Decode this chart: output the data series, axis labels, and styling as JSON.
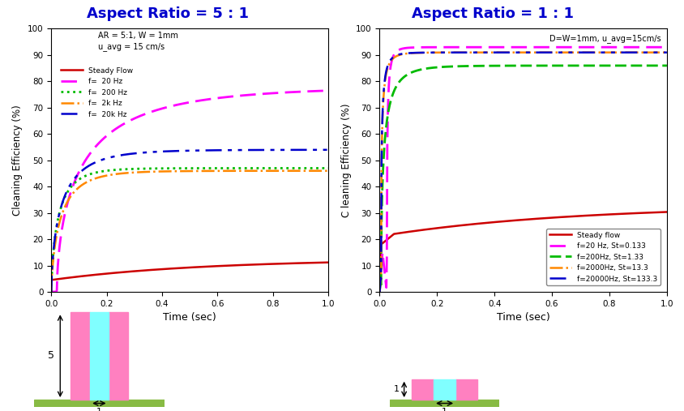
{
  "title_left": "Aspect Ratio = 5 : 1",
  "title_right": "Aspect Ratio = 1 : 1",
  "title_color": "#0000CC",
  "title_fontsize": 13,
  "xlabel": "Time (sec)",
  "ylabel_left": "Cleaning Efficiency (%)",
  "ylabel_right": "C leaning Efficiency (%)",
  "xlim": [
    0,
    1
  ],
  "ylim": [
    0,
    100
  ],
  "annotation_left_line1": "AR = 5:1, W = 1mm",
  "annotation_left_line2": "u_avg = 15 cm/s",
  "annotation_right": "D=W=1mm, u_avg=15cm/s",
  "left_legend": [
    {
      "label": "Steady Flow",
      "color": "#CC0000",
      "ls": "-",
      "lw": 1.8
    },
    {
      "label": "f=  20 Hz",
      "color": "#FF00FF",
      "ls": "--",
      "lw": 2.0
    },
    {
      "label": "f=  200 Hz",
      "color": "#00BB00",
      "ls": ":",
      "lw": 2.0
    },
    {
      "label": "f=  2k Hz",
      "color": "#FF8800",
      "ls": "-.",
      "lw": 1.8
    },
    {
      "label": "f=  20k Hz",
      "color": "#0000CC",
      "ls": "-.",
      "lw": 1.8
    }
  ],
  "right_legend": [
    {
      "label": "Steady flow",
      "color": "#CC0000",
      "ls": "-",
      "lw": 1.8
    },
    {
      "label": "f=20 Hz, St=0.133",
      "color": "#FF00FF",
      "ls": "--",
      "lw": 2.0
    },
    {
      "label": "f=200Hz, St=1.33",
      "color": "#00BB00",
      "ls": "--",
      "lw": 2.0
    },
    {
      "label": "f=2000Hz, St=13.3",
      "color": "#FF8800",
      "ls": "-.",
      "lw": 1.8
    },
    {
      "label": "f=20000Hz, St=133.3",
      "color": "#0000CC",
      "ls": "-.",
      "lw": 1.8
    }
  ],
  "bg_color": "#FFFFFF",
  "pink": "#FF80C0",
  "cyan": "#80FFFF",
  "green_floor": "#88BB44"
}
